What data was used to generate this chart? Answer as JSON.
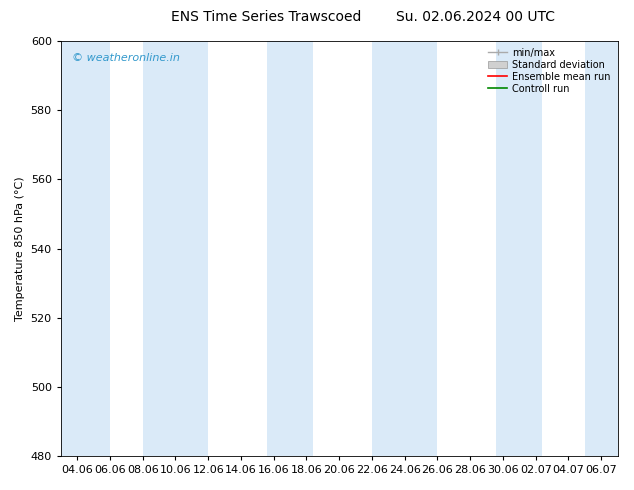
{
  "title_left": "ENS Time Series Trawscoed",
  "title_right": "Su. 02.06.2024 00 UTC",
  "ylabel": "Temperature 850 hPa (°C)",
  "ylim": [
    480,
    600
  ],
  "yticks": [
    480,
    500,
    520,
    540,
    560,
    580,
    600
  ],
  "xtick_labels": [
    "04.06",
    "06.06",
    "08.06",
    "10.06",
    "12.06",
    "14.06",
    "16.06",
    "18.06",
    "20.06",
    "22.06",
    "24.06",
    "26.06",
    "28.06",
    "30.06",
    "02.07",
    "04.07",
    "06.07"
  ],
  "watermark": "© weatheronline.in",
  "watermark_color": "#3399cc",
  "background_color": "#ffffff",
  "plot_bg_color": "#ffffff",
  "stripe_color": "#daeaf8",
  "legend_labels": [
    "min/max",
    "Standard deviation",
    "Ensemble mean run",
    "Controll run"
  ],
  "legend_line_colors": [
    "#aaaaaa",
    "#cccccc",
    "#ff0000",
    "#008800"
  ],
  "title_fontsize": 10,
  "axis_fontsize": 8,
  "tick_fontsize": 8,
  "watermark_fontsize": 8
}
